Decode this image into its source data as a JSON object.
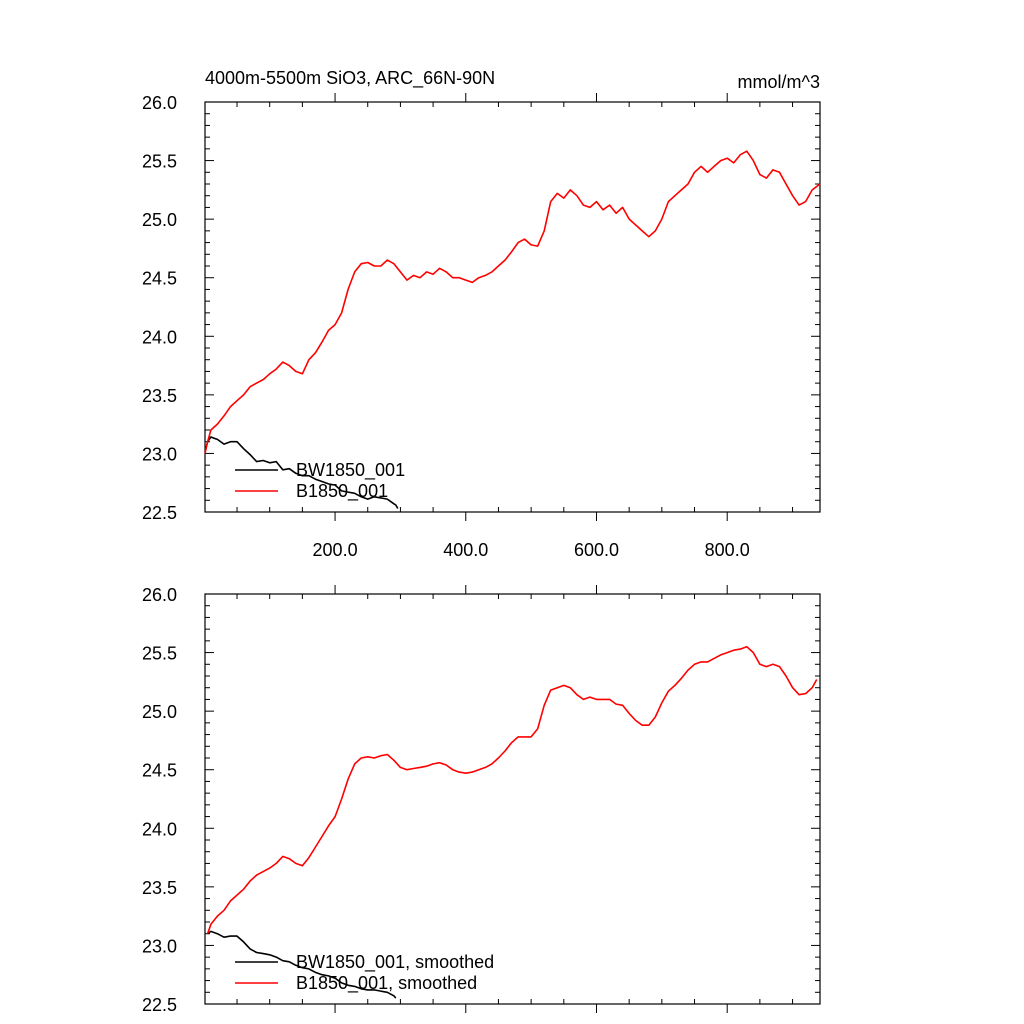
{
  "colors": {
    "BW1850_001": "#000000",
    "B1850_001": "#ff0000",
    "axes": "#000000"
  },
  "chart_data": [
    {
      "type": "line",
      "title": "4000m-5500m SiO3, ARC_66N-90N",
      "units": "mmol/m^3",
      "xlim": [
        1,
        942
      ],
      "ylim": [
        22.5,
        26.0
      ],
      "yticks": [
        "22.5",
        "23.0",
        "23.5",
        "24.0",
        "24.5",
        "25.0",
        "25.5",
        "26.0"
      ],
      "xticks": [
        "200.0",
        "400.0",
        "600.0",
        "800.0"
      ],
      "legend": [
        "BW1850_001",
        "B1850_001"
      ],
      "series": [
        {
          "name": "BW1850_001",
          "color": "#000000",
          "x": [
            1,
            5,
            10,
            15,
            20,
            30,
            40,
            50,
            60,
            70,
            80,
            90,
            100,
            110,
            120,
            130,
            140,
            150,
            160,
            170,
            180,
            190,
            200,
            210,
            220,
            230,
            240,
            250,
            260,
            270,
            280,
            290,
            293,
            296
          ],
          "y": [
            23.01,
            23.1,
            23.14,
            23.13,
            23.12,
            23.08,
            23.1,
            23.1,
            23.04,
            22.99,
            22.93,
            22.94,
            22.92,
            22.93,
            22.86,
            22.87,
            22.83,
            22.81,
            22.81,
            22.78,
            22.76,
            22.74,
            22.73,
            22.68,
            22.67,
            22.66,
            22.63,
            22.61,
            22.63,
            22.62,
            22.61,
            22.57,
            22.56,
            22.53
          ]
        },
        {
          "name": "B1850_001",
          "color": "#ff0000",
          "x": [
            1,
            5,
            10,
            20,
            30,
            40,
            50,
            60,
            70,
            80,
            90,
            100,
            110,
            120,
            130,
            140,
            150,
            160,
            170,
            180,
            190,
            200,
            210,
            220,
            230,
            240,
            250,
            260,
            270,
            280,
            290,
            300,
            310,
            320,
            330,
            340,
            350,
            360,
            370,
            380,
            390,
            400,
            410,
            420,
            430,
            440,
            450,
            460,
            470,
            480,
            490,
            500,
            510,
            520,
            530,
            540,
            550,
            560,
            570,
            580,
            590,
            600,
            610,
            620,
            630,
            640,
            650,
            660,
            670,
            680,
            690,
            700,
            710,
            720,
            730,
            740,
            750,
            760,
            770,
            780,
            790,
            800,
            810,
            820,
            830,
            840,
            850,
            860,
            870,
            880,
            890,
            900,
            910,
            920,
            930,
            942
          ],
          "y": [
            23.0,
            23.1,
            23.2,
            23.25,
            23.32,
            23.4,
            23.45,
            23.5,
            23.57,
            23.6,
            23.63,
            23.68,
            23.72,
            23.78,
            23.75,
            23.7,
            23.68,
            23.8,
            23.86,
            23.95,
            24.05,
            24.1,
            24.2,
            24.4,
            24.55,
            24.62,
            24.63,
            24.6,
            24.6,
            24.65,
            24.62,
            24.55,
            24.48,
            24.52,
            24.5,
            24.55,
            24.53,
            24.58,
            24.55,
            24.5,
            24.5,
            24.48,
            24.46,
            24.5,
            24.52,
            24.55,
            24.6,
            24.65,
            24.72,
            24.8,
            24.83,
            24.78,
            24.77,
            24.9,
            25.15,
            25.22,
            25.18,
            25.25,
            25.2,
            25.12,
            25.1,
            25.15,
            25.08,
            25.12,
            25.05,
            25.1,
            25.0,
            24.95,
            24.9,
            24.85,
            24.9,
            25.0,
            25.15,
            25.2,
            25.25,
            25.3,
            25.4,
            25.45,
            25.4,
            25.45,
            25.5,
            25.52,
            25.48,
            25.55,
            25.58,
            25.5,
            25.38,
            25.35,
            25.42,
            25.4,
            25.3,
            25.2,
            25.12,
            25.15,
            25.25,
            25.3
          ]
        }
      ]
    },
    {
      "type": "line",
      "xlim": [
        1,
        942
      ],
      "ylim": [
        22.5,
        26.0
      ],
      "yticks": [
        "22.5",
        "23.0",
        "23.5",
        "24.0",
        "24.5",
        "25.0",
        "25.5",
        "26.0"
      ],
      "legend": [
        "BW1850_001, smoothed",
        "B1850_001, smoothed"
      ],
      "series": [
        {
          "name": "BW1850_001, smoothed",
          "color": "#000000",
          "x": [
            5,
            10,
            20,
            30,
            40,
            50,
            60,
            70,
            80,
            90,
            100,
            110,
            120,
            130,
            140,
            150,
            160,
            170,
            180,
            190,
            200,
            210,
            220,
            230,
            240,
            250,
            260,
            270,
            280,
            290,
            293
          ],
          "y": [
            23.1,
            23.12,
            23.1,
            23.07,
            23.08,
            23.08,
            23.03,
            22.97,
            22.94,
            22.93,
            22.92,
            22.9,
            22.87,
            22.86,
            22.83,
            22.81,
            22.8,
            22.77,
            22.75,
            22.74,
            22.72,
            22.68,
            22.66,
            22.65,
            22.63,
            22.62,
            22.62,
            22.61,
            22.6,
            22.57,
            22.55
          ]
        },
        {
          "name": "B1850_001, smoothed",
          "color": "#ff0000",
          "x": [
            5,
            10,
            20,
            30,
            40,
            50,
            60,
            70,
            80,
            90,
            100,
            110,
            120,
            130,
            140,
            150,
            160,
            170,
            180,
            190,
            200,
            210,
            220,
            230,
            240,
            250,
            260,
            270,
            280,
            290,
            300,
            310,
            320,
            330,
            340,
            350,
            360,
            370,
            380,
            390,
            400,
            410,
            420,
            430,
            440,
            450,
            460,
            470,
            480,
            490,
            500,
            510,
            520,
            530,
            540,
            550,
            560,
            570,
            580,
            590,
            600,
            610,
            620,
            630,
            640,
            650,
            660,
            670,
            680,
            690,
            700,
            710,
            720,
            730,
            740,
            750,
            760,
            770,
            780,
            790,
            800,
            810,
            820,
            830,
            840,
            850,
            860,
            870,
            880,
            890,
            900,
            910,
            920,
            930,
            937
          ],
          "y": [
            23.1,
            23.18,
            23.25,
            23.3,
            23.38,
            23.43,
            23.48,
            23.55,
            23.6,
            23.63,
            23.66,
            23.7,
            23.76,
            23.74,
            23.7,
            23.68,
            23.75,
            23.84,
            23.93,
            24.02,
            24.1,
            24.25,
            24.42,
            24.55,
            24.6,
            24.61,
            24.6,
            24.62,
            24.63,
            24.58,
            24.52,
            24.5,
            24.51,
            24.52,
            24.53,
            24.55,
            24.56,
            24.54,
            24.5,
            24.48,
            24.47,
            24.48,
            24.5,
            24.52,
            24.55,
            24.6,
            24.66,
            24.73,
            24.78,
            24.78,
            24.78,
            24.85,
            25.05,
            25.18,
            25.2,
            25.22,
            25.2,
            25.14,
            25.1,
            25.12,
            25.1,
            25.1,
            25.1,
            25.06,
            25.05,
            24.98,
            24.92,
            24.88,
            24.88,
            24.95,
            25.07,
            25.17,
            25.22,
            25.28,
            25.35,
            25.4,
            25.42,
            25.42,
            25.45,
            25.48,
            25.5,
            25.52,
            25.53,
            25.55,
            25.5,
            25.4,
            25.38,
            25.4,
            25.38,
            25.3,
            25.2,
            25.14,
            25.15,
            25.2,
            25.27
          ]
        }
      ]
    }
  ]
}
